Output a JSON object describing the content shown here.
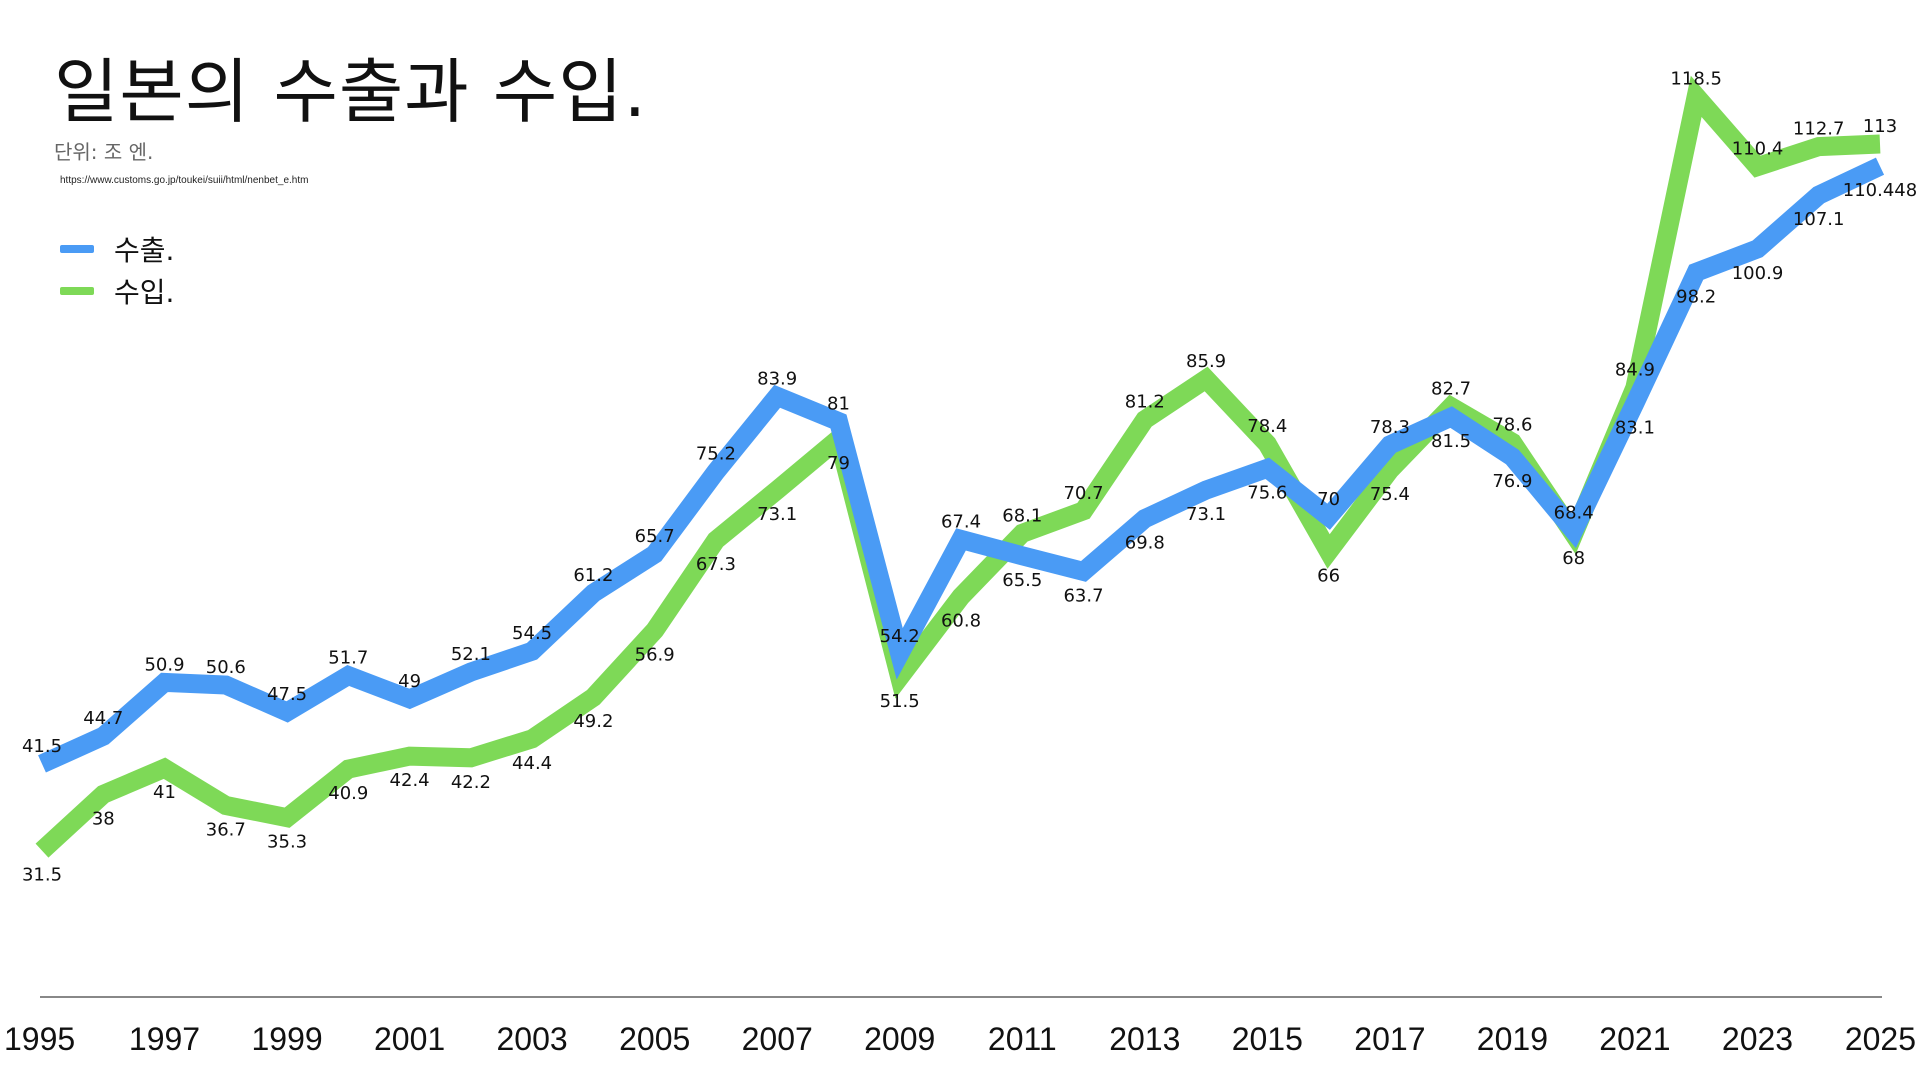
{
  "header": {
    "title": "일본의 수출과 수입.",
    "unit": "단위: 조 엔.",
    "source": "https://www.customs.go.jp/toukei/suii/html/nenbet_e.htm"
  },
  "legend": {
    "placement": "top-left",
    "items": [
      {
        "label": "수출.",
        "color": "#4A9BF5"
      },
      {
        "label": "수입.",
        "color": "#7ED957"
      }
    ]
  },
  "chart_data": {
    "type": "line",
    "title": "일본의 수출과 수입.",
    "subtitle": "단위: 조 엔.",
    "xlabel": "",
    "ylabel": "",
    "grid": false,
    "x": [
      1995,
      1996,
      1997,
      1998,
      1999,
      2000,
      2001,
      2002,
      2003,
      2004,
      2005,
      2006,
      2007,
      2008,
      2009,
      2010,
      2011,
      2012,
      2013,
      2014,
      2015,
      2016,
      2017,
      2018,
      2019,
      2020,
      2021,
      2022,
      2023,
      2024,
      2025
    ],
    "x_tick_labels": [
      "1995",
      "1997",
      "1999",
      "2001",
      "2003",
      "2005",
      "2007",
      "2009",
      "2011",
      "2013",
      "2015",
      "2017",
      "2019",
      "2021",
      "2023",
      "2025"
    ],
    "ylim": [
      10,
      125
    ],
    "series": [
      {
        "name": "수출.",
        "color": "#4A9BF5",
        "values": [
          41.5,
          44.7,
          50.9,
          50.6,
          47.5,
          51.7,
          49,
          52.1,
          54.5,
          61.2,
          65.7,
          75.2,
          83.9,
          81,
          54.2,
          67.4,
          65.5,
          63.7,
          69.8,
          73.1,
          75.6,
          70,
          78.3,
          81.5,
          76.9,
          68.4,
          83.1,
          98.2,
          100.9,
          107.1,
          110.448
        ],
        "labels": [
          "41.5",
          "44.7",
          "50.9",
          "50.6",
          "47.5",
          "51.7",
          "49",
          "52.1",
          "54.5",
          "61.2",
          "65.7",
          "75.2",
          "83.9",
          "81",
          "54.2",
          "67.4",
          "65.5",
          "63.7",
          "69.8",
          "73.1",
          "75.6",
          "70",
          "78.3",
          "81.5",
          "76.9",
          "68.4",
          "83.1",
          "98.2",
          "100.9",
          "107.1",
          "110.448"
        ]
      },
      {
        "name": "수입.",
        "color": "#7ED957",
        "values": [
          31.5,
          38,
          41,
          36.7,
          35.3,
          40.9,
          42.4,
          42.2,
          44.4,
          49.2,
          56.9,
          67.3,
          73.1,
          79,
          51.5,
          60.8,
          68.1,
          70.7,
          81.2,
          85.9,
          78.4,
          66,
          75.4,
          82.7,
          78.6,
          68,
          84.9,
          118.5,
          110.4,
          112.7,
          113
        ],
        "labels": [
          "31.5",
          "38",
          "41",
          "36.7",
          "35.3",
          "40.9",
          "42.4",
          "42.2",
          "44.4",
          "49.2",
          "56.9",
          "67.3",
          "73.1",
          "79",
          "51.5",
          "60.8",
          "68.1",
          "70.7",
          "81.2",
          "85.9",
          "78.4",
          "66",
          "75.4",
          "82.7",
          "78.6",
          "68",
          "84.9",
          "118.5",
          "110.4",
          "112.7",
          "113"
        ]
      }
    ]
  }
}
